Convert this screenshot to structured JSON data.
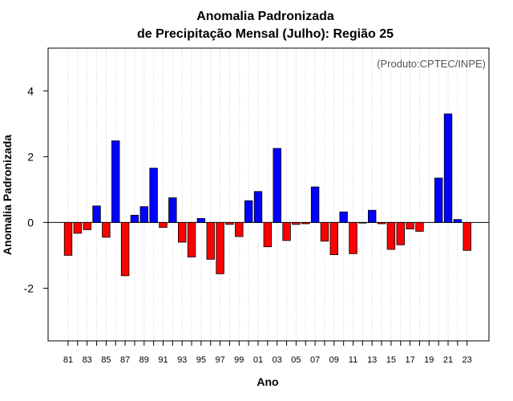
{
  "chart_data": {
    "type": "bar",
    "title_line1": "Anomalia Padronizada",
    "title_line2": "de Precipitação Mensal (Julho): Região 25",
    "xlabel": "Ano",
    "ylabel": "Anomalia Padronizada",
    "credit": "(Produto:CPTEC/INPE)",
    "ylim": [
      -3.6,
      5.3
    ],
    "yticks": [
      -2,
      0,
      2,
      4
    ],
    "positive_color": "#0000ff",
    "negative_color": "#ff0000",
    "years": [
      1981,
      1982,
      1983,
      1984,
      1985,
      1986,
      1987,
      1988,
      1989,
      1990,
      1991,
      1992,
      1993,
      1994,
      1995,
      1996,
      1997,
      1998,
      1999,
      2000,
      2001,
      2002,
      2003,
      2004,
      2005,
      2006,
      2007,
      2008,
      2009,
      2010,
      2011,
      2012,
      2013,
      2014,
      2015,
      2016,
      2017,
      2018,
      2019,
      2020,
      2021,
      2022,
      2023
    ],
    "tick_labels": [
      "81",
      "83",
      "85",
      "87",
      "89",
      "91",
      "93",
      "95",
      "97",
      "99",
      "01",
      "03",
      "05",
      "07",
      "09",
      "11",
      "13",
      "15",
      "17",
      "19",
      "21",
      "23"
    ],
    "values": [
      -1.0,
      -0.33,
      -0.22,
      0.5,
      -0.45,
      2.48,
      -1.62,
      0.22,
      0.48,
      1.65,
      -0.15,
      0.75,
      -0.6,
      -1.05,
      0.12,
      -1.12,
      -1.56,
      -0.06,
      -0.43,
      0.66,
      0.94,
      -0.74,
      2.25,
      -0.55,
      -0.06,
      -0.04,
      1.08,
      -0.57,
      -0.98,
      0.32,
      -0.95,
      -0.02,
      0.37,
      -0.04,
      -0.82,
      -0.68,
      -0.2,
      -0.27,
      0.0,
      1.35,
      3.3,
      0.09,
      -0.85
    ]
  }
}
